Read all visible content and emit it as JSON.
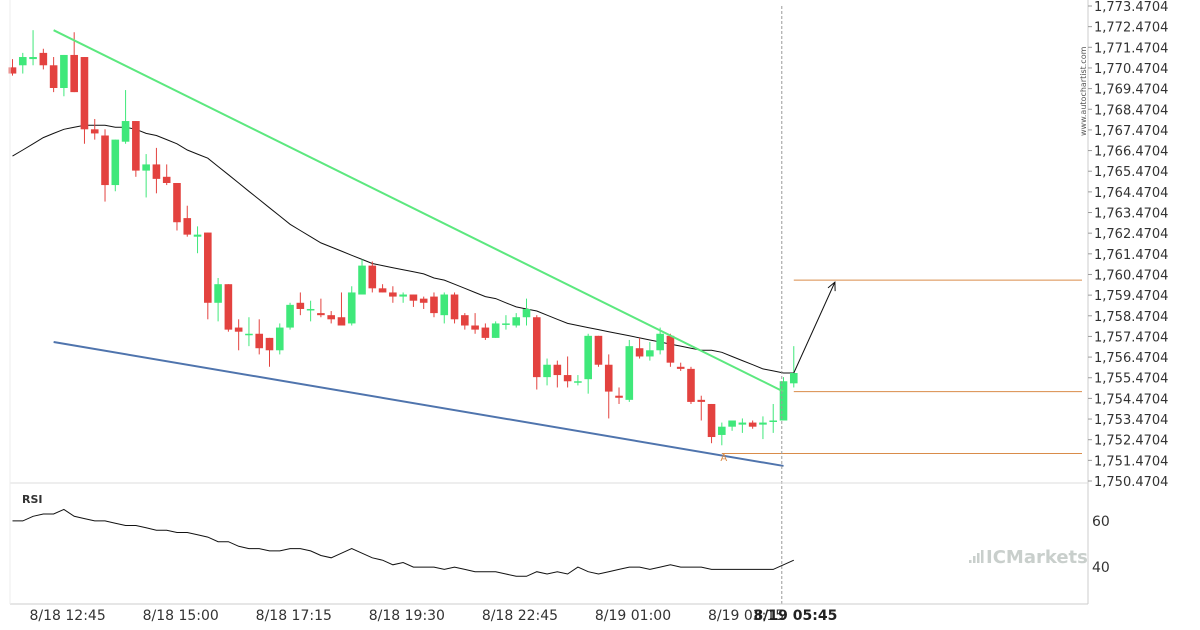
{
  "chart_data": {
    "type": "candlestick",
    "y_ticks": [
      "1,773.4704",
      "1,772.4704",
      "1,771.4704",
      "1,770.4704",
      "1,769.4704",
      "1,768.4704",
      "1,767.4704",
      "1,766.4704",
      "1,765.4704",
      "1,764.4704",
      "1,763.4704",
      "1,762.4704",
      "1,761.4704",
      "1,760.4704",
      "1,759.4704",
      "1,758.4704",
      "1,757.4704",
      "1,756.4704",
      "1,755.4704",
      "1,754.4704",
      "1,753.4704",
      "1,752.4704",
      "1,751.4704",
      "1,750.4704"
    ],
    "ylim": [
      1750.4704,
      1773.4704
    ],
    "x_ticks": [
      "8/18 12:45",
      "8/18 15:00",
      "8/18 17:15",
      "8/18 19:30",
      "8/18 22:45",
      "8/19 01:00",
      "8/19 03:15",
      "8/19 05:45"
    ],
    "current_x_label": "8/19 05:45",
    "watermark_vertical": "www.autochartist.com",
    "brand": "ICMarkets",
    "point_label": "A",
    "candles": [
      [
        1770.5,
        1770.9,
        1770.1,
        1770.2
      ],
      [
        1770.6,
        1771.2,
        1770.2,
        1771.0
      ],
      [
        1770.9,
        1772.3,
        1770.6,
        1771.0
      ],
      [
        1771.2,
        1771.4,
        1770.4,
        1770.6
      ],
      [
        1770.6,
        1771.0,
        1769.3,
        1769.5
      ],
      [
        1769.5,
        1771.1,
        1769.1,
        1771.1
      ],
      [
        1771.1,
        1772.2,
        1769.3,
        1769.3
      ],
      [
        1771.0,
        1771.0,
        1766.8,
        1767.5
      ],
      [
        1767.5,
        1768.0,
        1767.0,
        1767.3
      ],
      [
        1767.2,
        1767.5,
        1764.0,
        1764.8
      ],
      [
        1764.8,
        1767.0,
        1764.5,
        1767.0
      ],
      [
        1766.9,
        1769.4,
        1766.8,
        1767.9
      ],
      [
        1767.9,
        1767.9,
        1765.2,
        1765.5
      ],
      [
        1765.5,
        1766.3,
        1764.2,
        1765.8
      ],
      [
        1765.8,
        1766.6,
        1764.4,
        1765.1
      ],
      [
        1765.2,
        1765.8,
        1764.8,
        1764.9
      ],
      [
        1764.9,
        1764.9,
        1762.6,
        1763.0
      ],
      [
        1763.2,
        1763.8,
        1762.3,
        1762.4
      ],
      [
        1762.3,
        1762.8,
        1761.5,
        1762.4
      ],
      [
        1762.5,
        1762.5,
        1758.3,
        1759.1
      ],
      [
        1759.1,
        1760.3,
        1758.2,
        1760.0
      ],
      [
        1760.0,
        1760.0,
        1757.7,
        1757.8
      ],
      [
        1757.9,
        1758.3,
        1756.8,
        1757.7
      ],
      [
        1757.6,
        1758.4,
        1757.0,
        1757.6
      ],
      [
        1757.6,
        1758.3,
        1756.6,
        1756.9
      ],
      [
        1757.4,
        1757.4,
        1756.0,
        1756.8
      ],
      [
        1756.8,
        1758.1,
        1756.6,
        1757.9
      ],
      [
        1757.9,
        1759.1,
        1757.8,
        1759.0
      ],
      [
        1759.1,
        1759.6,
        1758.5,
        1758.8
      ],
      [
        1758.8,
        1759.2,
        1758.2,
        1758.8
      ],
      [
        1758.6,
        1759.3,
        1758.4,
        1758.5
      ],
      [
        1758.5,
        1758.7,
        1758.1,
        1758.3
      ],
      [
        1758.4,
        1759.6,
        1758.0,
        1758.0
      ],
      [
        1758.1,
        1759.9,
        1758.0,
        1759.6
      ],
      [
        1759.5,
        1761.2,
        1759.5,
        1760.9
      ],
      [
        1760.9,
        1761.1,
        1759.6,
        1759.8
      ],
      [
        1759.8,
        1760.0,
        1759.6,
        1759.6
      ],
      [
        1759.6,
        1759.9,
        1759.1,
        1759.4
      ],
      [
        1759.4,
        1759.6,
        1759.1,
        1759.5
      ],
      [
        1759.5,
        1759.5,
        1758.9,
        1759.2
      ],
      [
        1759.3,
        1759.4,
        1758.8,
        1759.1
      ],
      [
        1759.4,
        1759.6,
        1758.4,
        1758.6
      ],
      [
        1758.5,
        1759.6,
        1758.1,
        1759.5
      ],
      [
        1759.5,
        1759.6,
        1758.1,
        1758.3
      ],
      [
        1758.5,
        1758.6,
        1757.8,
        1758.0
      ],
      [
        1758.0,
        1758.6,
        1757.6,
        1757.8
      ],
      [
        1757.9,
        1758.1,
        1757.3,
        1757.4
      ],
      [
        1757.4,
        1758.2,
        1757.4,
        1758.1
      ],
      [
        1758.1,
        1758.5,
        1757.8,
        1758.1
      ],
      [
        1758.0,
        1758.6,
        1757.9,
        1758.4
      ],
      [
        1758.4,
        1759.3,
        1758.0,
        1758.8
      ],
      [
        1758.4,
        1758.5,
        1754.9,
        1755.5
      ],
      [
        1755.5,
        1756.4,
        1755.1,
        1756.1
      ],
      [
        1756.1,
        1756.3,
        1755.0,
        1755.6
      ],
      [
        1755.6,
        1756.5,
        1755.0,
        1755.3
      ],
      [
        1755.3,
        1755.6,
        1755.1,
        1755.3
      ],
      [
        1755.4,
        1757.6,
        1754.7,
        1757.5
      ],
      [
        1757.5,
        1757.5,
        1756.0,
        1756.1
      ],
      [
        1756.1,
        1756.6,
        1753.5,
        1754.8
      ],
      [
        1754.6,
        1755.0,
        1754.2,
        1754.5
      ],
      [
        1754.4,
        1757.3,
        1754.3,
        1757.0
      ],
      [
        1756.9,
        1757.4,
        1756.4,
        1756.5
      ],
      [
        1756.5,
        1757.2,
        1756.3,
        1756.8
      ],
      [
        1756.8,
        1757.9,
        1756.6,
        1757.6
      ],
      [
        1757.5,
        1757.6,
        1756.0,
        1756.2
      ],
      [
        1756.0,
        1756.2,
        1755.8,
        1755.9
      ],
      [
        1755.9,
        1756.0,
        1754.2,
        1754.3
      ],
      [
        1754.4,
        1754.6,
        1753.4,
        1754.3
      ],
      [
        1754.2,
        1754.2,
        1752.3,
        1752.6
      ],
      [
        1752.7,
        1753.3,
        1752.2,
        1753.1
      ],
      [
        1753.1,
        1753.4,
        1752.9,
        1753.4
      ],
      [
        1753.2,
        1753.5,
        1752.8,
        1753.3
      ],
      [
        1753.3,
        1753.4,
        1753.0,
        1753.1
      ],
      [
        1753.2,
        1753.6,
        1752.5,
        1753.3
      ],
      [
        1753.4,
        1754.2,
        1752.8,
        1753.4
      ],
      [
        1753.4,
        1755.5,
        1753.4,
        1755.3
      ],
      [
        1755.2,
        1757.0,
        1755.0,
        1755.7
      ]
    ],
    "sma": [
      1766.2,
      1766.5,
      1766.8,
      1767.1,
      1767.3,
      1767.5,
      1767.6,
      1767.7,
      1767.7,
      1767.7,
      1767.6,
      1767.6,
      1767.5,
      1767.3,
      1767.2,
      1767.0,
      1766.8,
      1766.5,
      1766.3,
      1766.1,
      1765.7,
      1765.3,
      1764.9,
      1764.5,
      1764.1,
      1763.7,
      1763.3,
      1762.9,
      1762.6,
      1762.3,
      1762.0,
      1761.8,
      1761.6,
      1761.4,
      1761.2,
      1761.0,
      1760.9,
      1760.8,
      1760.7,
      1760.6,
      1760.5,
      1760.3,
      1760.2,
      1760.0,
      1759.8,
      1759.6,
      1759.4,
      1759.3,
      1759.1,
      1758.9,
      1758.8,
      1758.7,
      1758.5,
      1758.3,
      1758.1,
      1758.0,
      1757.9,
      1757.8,
      1757.7,
      1757.6,
      1757.5,
      1757.4,
      1757.3,
      1757.2,
      1757.1,
      1757.0,
      1756.9,
      1756.8,
      1756.8,
      1756.7,
      1756.5,
      1756.3,
      1756.1,
      1755.9,
      1755.8,
      1755.7,
      1755.7
    ],
    "trendline_upper": {
      "from": [
        4,
        1772.3
      ],
      "to": [
        75,
        1754.8
      ]
    },
    "trendline_lower": {
      "from": [
        4,
        1757.2
      ],
      "to": [
        75,
        1751.2
      ]
    },
    "levels": [
      {
        "value": 1760.2,
        "from_index": 76
      },
      {
        "value": 1754.8,
        "from_index": 76
      },
      {
        "value": 1751.8,
        "from_index": 69
      }
    ],
    "projection": {
      "from": [
        76,
        1755.7
      ],
      "to": [
        80,
        1760.1
      ]
    },
    "point_marker_index": 69,
    "rsi": {
      "label": "RSI",
      "ticks": [
        60,
        40
      ],
      "ylim": [
        24,
        76
      ],
      "values": [
        60,
        60,
        62,
        63,
        63,
        65,
        62,
        61,
        60,
        60,
        59,
        58,
        58,
        57,
        56,
        56,
        55,
        55,
        54,
        53,
        51,
        51,
        49,
        48,
        48,
        47,
        47,
        48,
        48,
        47,
        45,
        44,
        46,
        48,
        46,
        44,
        43,
        41,
        42,
        40,
        40,
        40,
        39,
        40,
        39,
        38,
        38,
        38,
        37,
        36,
        36,
        38,
        37,
        38,
        37,
        40,
        38,
        37,
        38,
        39,
        40,
        40,
        39,
        40,
        41,
        40,
        40,
        40,
        39,
        39,
        39,
        39,
        39,
        39,
        39,
        41,
        43
      ]
    },
    "colors": {
      "bull": "#3fe87a",
      "bear": "#e3423f",
      "trend_upper": "#5ce87f",
      "trend_lower": "#4f74ad",
      "level": "#d98c4a",
      "sma": "#111111",
      "projection": "#111111",
      "rsi": "#111111",
      "grid": "#cccccc"
    }
  }
}
